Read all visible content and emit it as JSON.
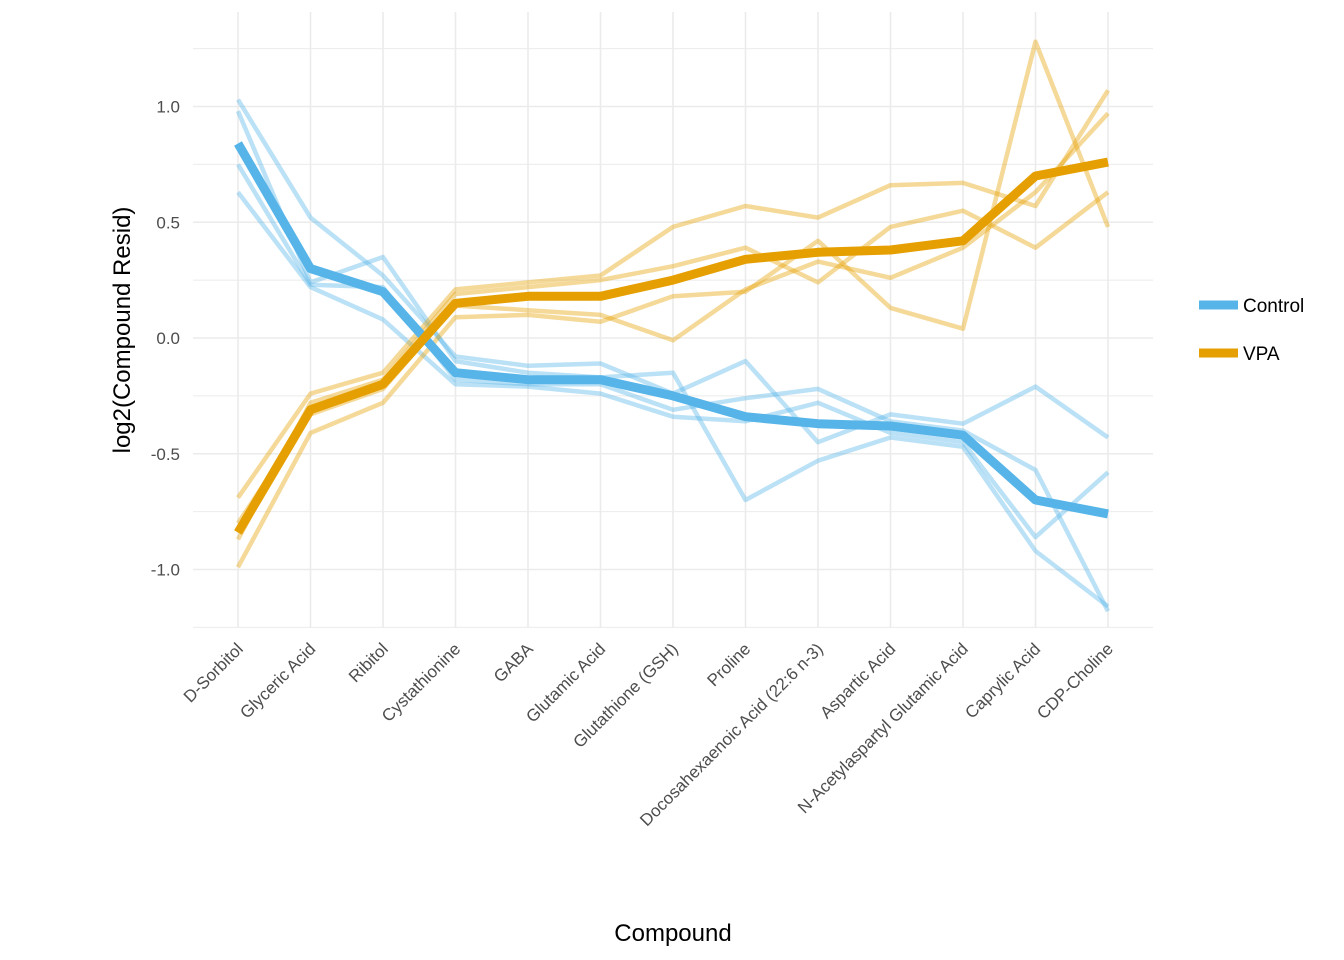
{
  "chart_data": {
    "type": "line",
    "xlabel": "Compound",
    "ylabel": "log2(Compound Resid)",
    "ylim": [
      -1.25,
      1.3
    ],
    "yticks": [
      -1.0,
      -0.5,
      0.0,
      0.5,
      1.0
    ],
    "ytick_labels": [
      "-1.0",
      "-0.5",
      "0.0",
      "0.5",
      "1.0"
    ],
    "grid": true,
    "legend_position": "right",
    "categories": [
      "D-Sorbitol",
      "Glyceric Acid",
      "Ribitol",
      "Cystathionine",
      "GABA",
      "Glutamic Acid",
      "Glutathione (GSH)",
      "Proline",
      "Docosahexaenoic Acid (22:6 n-3)",
      "Aspartic Acid",
      "N-Acetylaspartyl Glutamic Acid",
      "Caprylic Acid",
      "CDP-Choline"
    ],
    "series": [
      {
        "name": "Control",
        "color": "#56B4E9",
        "values": [
          0.84,
          0.3,
          0.2,
          -0.15,
          -0.18,
          -0.18,
          -0.25,
          -0.34,
          -0.37,
          -0.38,
          -0.42,
          -0.7,
          -0.76
        ]
      },
      {
        "name": "VPA",
        "color": "#E69F00",
        "values": [
          -0.84,
          -0.31,
          -0.2,
          0.15,
          0.18,
          0.18,
          0.25,
          0.34,
          0.37,
          0.38,
          0.42,
          0.7,
          0.76
        ]
      }
    ],
    "replicates": [
      {
        "group": "Control",
        "values": [
          1.03,
          0.52,
          0.27,
          -0.08,
          -0.12,
          -0.11,
          -0.24,
          -0.1,
          -0.45,
          -0.33,
          -0.37,
          -0.21,
          -0.43
        ]
      },
      {
        "group": "Control",
        "values": [
          0.98,
          0.24,
          0.35,
          -0.1,
          -0.15,
          -0.17,
          -0.15,
          -0.7,
          -0.53,
          -0.43,
          -0.47,
          -0.92,
          -1.16
        ]
      },
      {
        "group": "Control",
        "values": [
          0.75,
          0.23,
          0.22,
          -0.18,
          -0.2,
          -0.2,
          -0.31,
          -0.26,
          -0.22,
          -0.36,
          -0.4,
          -0.57,
          -1.18
        ]
      },
      {
        "group": "Control",
        "values": [
          0.63,
          0.22,
          0.08,
          -0.2,
          -0.21,
          -0.24,
          -0.34,
          -0.36,
          -0.28,
          -0.41,
          -0.45,
          -0.86,
          -0.58
        ]
      },
      {
        "group": "VPA",
        "values": [
          -0.69,
          -0.24,
          -0.15,
          0.21,
          0.24,
          0.27,
          0.48,
          0.57,
          0.52,
          0.66,
          0.67,
          0.57,
          1.07
        ]
      },
      {
        "group": "VPA",
        "values": [
          -0.87,
          -0.28,
          -0.18,
          0.19,
          0.22,
          0.25,
          0.31,
          0.39,
          0.24,
          0.48,
          0.55,
          0.39,
          0.63
        ]
      },
      {
        "group": "VPA",
        "values": [
          -0.99,
          -0.41,
          -0.28,
          0.09,
          0.1,
          0.07,
          0.18,
          0.2,
          0.42,
          0.13,
          0.04,
          1.28,
          0.48
        ]
      },
      {
        "group": "VPA",
        "values": [
          -0.8,
          -0.33,
          -0.22,
          0.14,
          0.12,
          0.1,
          -0.01,
          0.21,
          0.33,
          0.26,
          0.39,
          0.63,
          0.97
        ]
      }
    ]
  }
}
